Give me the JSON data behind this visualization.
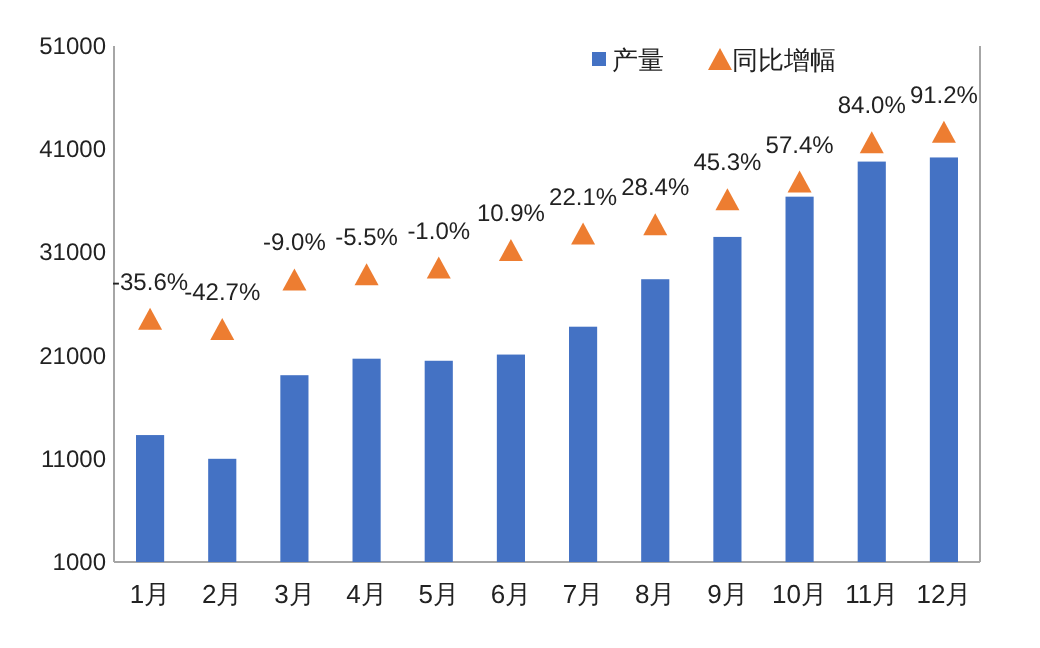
{
  "chart_data": {
    "type": "bar",
    "categories": [
      "1月",
      "2月",
      "3月",
      "4月",
      "5月",
      "6月",
      "7月",
      "8月",
      "9月",
      "10月",
      "11月",
      "12月"
    ],
    "series": [
      {
        "name": "产量",
        "color": "#4472c4",
        "values": [
          13300,
          11000,
          19100,
          20700,
          20500,
          21100,
          23800,
          28400,
          32500,
          36400,
          39800,
          40200
        ]
      },
      {
        "name": "同比增幅",
        "type": "scatter",
        "axis": "y2",
        "marker": "triangle",
        "color": "#ed7d31",
        "values": [
          -35.6,
          -42.7,
          -9.0,
          -5.5,
          -1.0,
          10.9,
          22.1,
          28.4,
          45.3,
          57.4,
          84.0,
          91.2
        ],
        "value_labels": [
          "-35.6%",
          "-42.7%",
          "-9.0%",
          "-5.5%",
          "-1.0%",
          "10.9%",
          "22.1%",
          "28.4%",
          "45.3%",
          "57.4%",
          "84.0%",
          "91.2%"
        ]
      }
    ],
    "ylim": [
      1000,
      51000
    ],
    "yticks": [
      1000,
      11000,
      21000,
      31000,
      41000,
      51000
    ],
    "y2lim": [
      -200,
      150
    ],
    "tick_labels": "y",
    "legend": "top right",
    "grid": false
  }
}
